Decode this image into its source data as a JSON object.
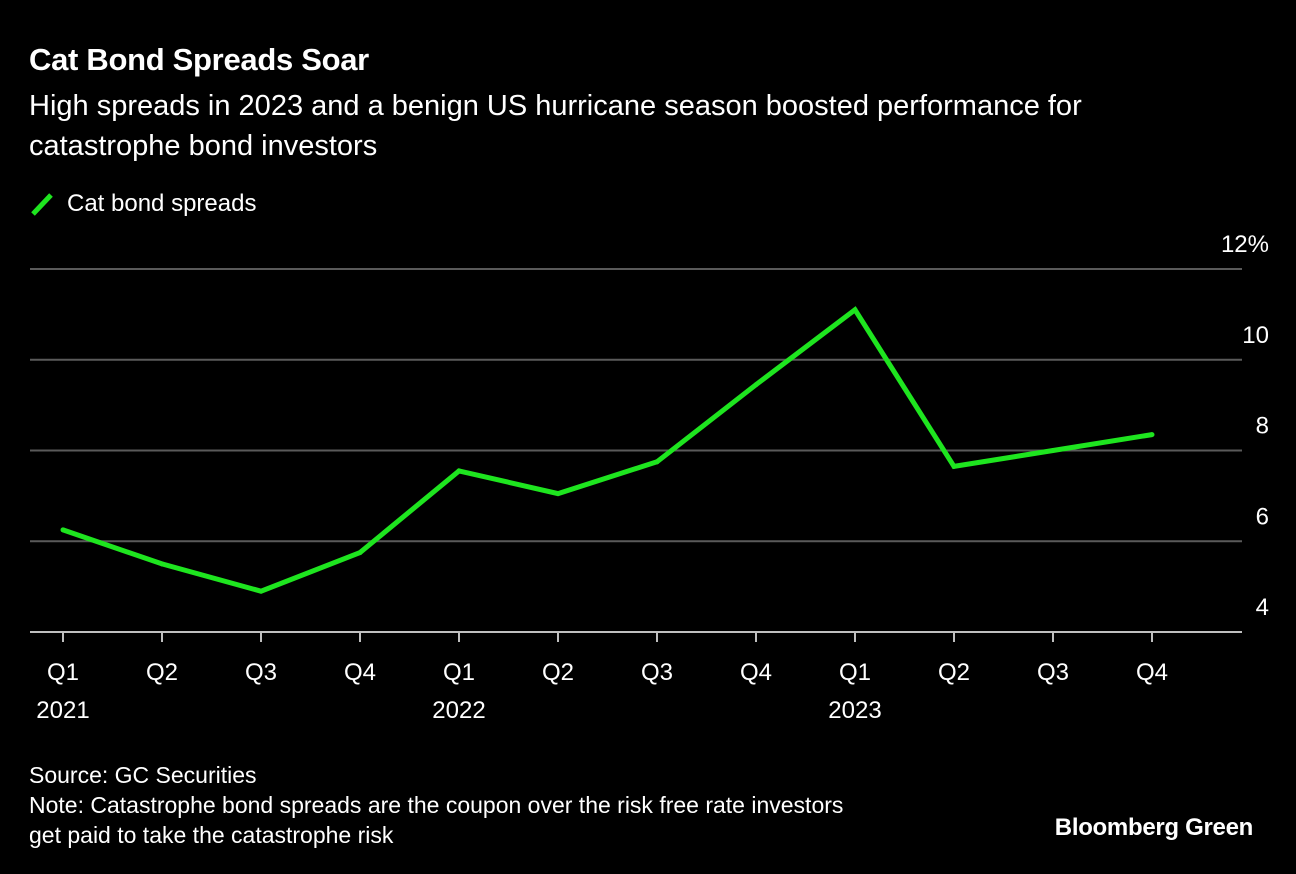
{
  "header": {
    "title": "Cat Bond Spreads Soar",
    "subtitle": "High spreads in 2023 and a benign US hurricane season boosted performance for catastrophe bond investors"
  },
  "legend": {
    "label": "Cat bond spreads"
  },
  "colors": {
    "background": "#000000",
    "line": "#1ee51f",
    "grid": "#5a5a5a",
    "axis": "#bfbfbf",
    "text": "#ffffff"
  },
  "chart_data": {
    "type": "line",
    "categories": [
      "Q1",
      "Q2",
      "Q3",
      "Q4",
      "Q1",
      "Q2",
      "Q3",
      "Q4",
      "Q1",
      "Q2",
      "Q3",
      "Q4"
    ],
    "year_labels": [
      {
        "index": 0,
        "label": "2021"
      },
      {
        "index": 4,
        "label": "2022"
      },
      {
        "index": 8,
        "label": "2023"
      }
    ],
    "series": [
      {
        "name": "Cat bond spreads",
        "color": "#1ee51f",
        "values": [
          6.25,
          5.5,
          4.9,
          5.75,
          7.55,
          7.05,
          7.75,
          9.45,
          11.1,
          7.65,
          8.0,
          8.35
        ]
      }
    ],
    "ylim": [
      4,
      12
    ],
    "yticks": [
      {
        "value": 12,
        "label": "12%"
      },
      {
        "value": 10,
        "label": "10"
      },
      {
        "value": 8,
        "label": "8"
      },
      {
        "value": 6,
        "label": "6"
      },
      {
        "value": 4,
        "label": "4"
      }
    ],
    "y_axis_side": "right",
    "grid": true,
    "legend_position": "top-left"
  },
  "footer": {
    "source": "Source: GC Securities",
    "note_line1": "Note: Catastrophe bond spreads are the coupon over the risk free rate investors",
    "note_line2": "get paid to take the catastrophe risk",
    "brand": "Bloomberg Green"
  }
}
